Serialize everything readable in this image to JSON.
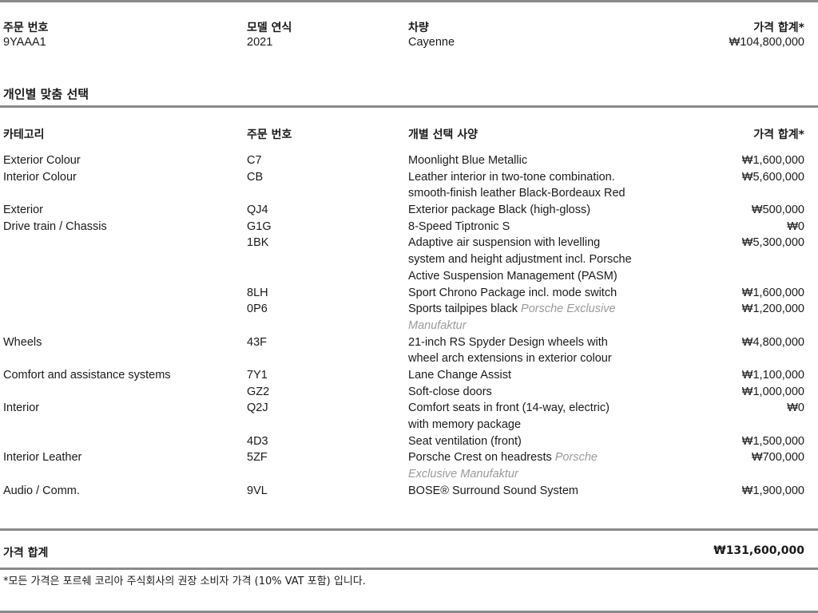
{
  "summary": {
    "headers": {
      "order_no": "주문 번호",
      "model_year": "모델 연식",
      "vehicle": "차량",
      "price": "가격 합계*"
    },
    "values": {
      "order_no": "9YAAA1",
      "model_year": "2021",
      "vehicle": "Cayenne",
      "price": "₩104,800,000"
    }
  },
  "section_title": "개인별 맞춤 선택",
  "table": {
    "headers": {
      "category": "카테고리",
      "code": "주문 번호",
      "option": "개별 선택 사양",
      "price": "가격 합계*"
    },
    "rows": [
      {
        "category": "Exterior Colour",
        "code": "C7",
        "desc": "Moonlight Blue Metallic",
        "exclusive": "",
        "price": "₩1,600,000",
        "lines": 1
      },
      {
        "category": "Interior Colour",
        "code": "CB",
        "desc": "Leather interior in two-tone combination.\nsmooth-finish leather  Black-Bordeaux Red",
        "exclusive": "",
        "price": "₩5,600,000",
        "lines": 2
      },
      {
        "category": "Exterior",
        "code": "QJ4",
        "desc": "Exterior package Black (high-gloss)",
        "exclusive": "",
        "price": "₩500,000",
        "lines": 1
      },
      {
        "category": "Drive train / Chassis",
        "code": "G1G",
        "desc": "8-Speed Tiptronic S",
        "exclusive": "",
        "price": "₩0",
        "lines": 1
      },
      {
        "category": "",
        "code": "1BK",
        "desc": "Adaptive air suspension with levelling\nsystem and height adjustment incl. Porsche\nActive Suspension Management (PASM)",
        "exclusive": "",
        "price": "₩5,300,000",
        "lines": 3
      },
      {
        "category": "",
        "code": "8LH",
        "desc": "Sport Chrono Package incl. mode switch",
        "exclusive": "",
        "price": "₩1,600,000",
        "lines": 1
      },
      {
        "category": "",
        "code": "0P6",
        "desc": "Sports tailpipes black ",
        "exclusive": "Porsche Exclusive\nManufaktur",
        "price": "₩1,200,000",
        "lines": 2
      },
      {
        "category": "Wheels",
        "code": "43F",
        "desc": "21-inch RS Spyder Design wheels with\nwheel arch extensions in exterior colour",
        "exclusive": "",
        "price": "₩4,800,000",
        "lines": 2
      },
      {
        "category": "Comfort and assistance systems",
        "code": "7Y1",
        "desc": "Lane Change Assist",
        "exclusive": "",
        "price": "₩1,100,000",
        "lines": 1
      },
      {
        "category": "",
        "code": "GZ2",
        "desc": "Soft-close doors",
        "exclusive": "",
        "price": "₩1,000,000",
        "lines": 1
      },
      {
        "category": "Interior",
        "code": "Q2J",
        "desc": "Comfort seats in front (14-way, electric)\nwith memory package",
        "exclusive": "",
        "price": "₩0",
        "lines": 2
      },
      {
        "category": "",
        "code": "4D3",
        "desc": "Seat ventilation (front)",
        "exclusive": "",
        "price": "₩1,500,000",
        "lines": 1
      },
      {
        "category": "Interior Leather",
        "code": "5ZF",
        "desc": "Porsche Crest on headrests  ",
        "exclusive": "Porsche\nExclusive Manufaktur",
        "price": "₩700,000",
        "lines": 2
      },
      {
        "category": "Audio / Comm.",
        "code": "9VL",
        "desc": "BOSE® Surround Sound System",
        "exclusive": "",
        "price": "₩1,900,000",
        "lines": 1
      }
    ]
  },
  "total": {
    "label": "가격 합계",
    "value": "₩131,600,000"
  },
  "footnote": "*모든 가격은 포르쉐 코리아 주식회사의 권장 소비자 가격 (10% VAT 포함) 입니다."
}
